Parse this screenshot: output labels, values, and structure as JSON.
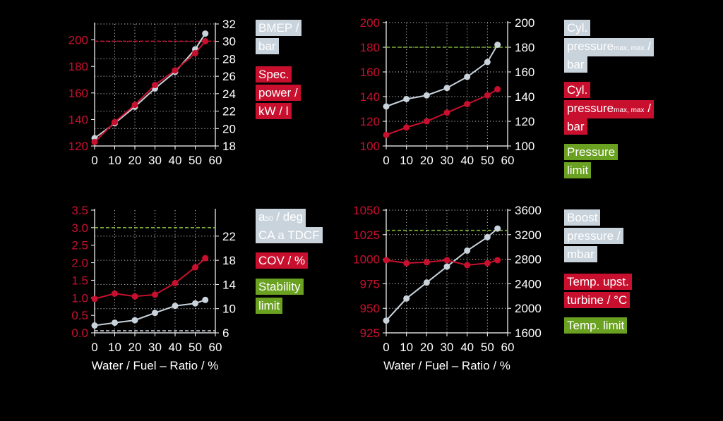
{
  "colors": {
    "gray_series": "#c9d3dc",
    "red_series": "#c8102e",
    "green_limit": "#7fb13a",
    "grid": "#c9c9c9",
    "axis_text": "#ffffff",
    "red_axis_text": "#c8102e",
    "background": "#000000"
  },
  "legends": {
    "c1": {
      "gray": [
        "BMEP /",
        "bar"
      ],
      "red": [
        "Spec.",
        "power /",
        "kW / l"
      ]
    },
    "c2": {
      "gray_top": "Cyl.",
      "gray_mid_main": "pressure",
      "gray_mid_sub": "max, max",
      "gray_mid_tail": " /",
      "gray_bot": "bar",
      "red_top": "Cyl.",
      "red_mid_main": "pressure",
      "red_mid_sub": "max, max",
      "red_mid_tail": " /",
      "red_bot": "bar",
      "green": [
        "Pressure",
        "limit"
      ]
    },
    "c3": {
      "gray_a_main": "a",
      "gray_a_sub": "50",
      "gray_a_tail": " / deg",
      "gray_b": "CA a TDCF",
      "red": "COV / %",
      "green": [
        "Stability",
        "limit"
      ]
    },
    "c4": {
      "gray": [
        "Boost",
        "pressure /",
        "mbar"
      ],
      "red": [
        "Temp. upst.",
        "turbine / °C"
      ],
      "green": "Temp. limit"
    }
  },
  "chart_data": [
    {
      "type": "line",
      "xlabel": "",
      "x_ticks": [
        "0",
        "10",
        "20",
        "30",
        "40",
        "50",
        "60"
      ],
      "xlim": [
        0,
        60
      ],
      "grid": true,
      "left_axis": {
        "lim": [
          120,
          212
        ],
        "ticks": [
          120,
          140,
          160,
          180,
          200
        ]
      },
      "right_axis": {
        "lim": [
          18,
          32
        ],
        "ticks": [
          18,
          20,
          22,
          24,
          26,
          28,
          30,
          32
        ]
      },
      "series": [
        {
          "name": "BMEP / bar",
          "axis": "right",
          "color": "gray",
          "x": [
            0,
            10,
            20,
            30,
            40,
            50,
            55
          ],
          "values": [
            18.9,
            20.6,
            22.5,
            24.6,
            26.5,
            29.1,
            30.9
          ]
        },
        {
          "name": "Spec. power / kW / l",
          "axis": "left",
          "color": "red",
          "x": [
            0,
            10,
            20,
            30,
            40,
            50,
            55
          ],
          "values": [
            123,
            138,
            151,
            166,
            177,
            190,
            199
          ]
        }
      ],
      "hlines": [
        {
          "axis": "left",
          "value": 199,
          "color": "red"
        }
      ]
    },
    {
      "type": "line",
      "xlabel": "",
      "x_ticks": [
        "0",
        "10",
        "20",
        "30",
        "40",
        "50",
        "60"
      ],
      "xlim": [
        0,
        60
      ],
      "grid": true,
      "left_axis": {
        "lim": [
          100,
          200
        ],
        "ticks": [
          100,
          120,
          140,
          160,
          180,
          200
        ]
      },
      "right_axis": {
        "lim": [
          100,
          200
        ],
        "ticks": [
          100,
          120,
          140,
          160,
          180,
          200
        ]
      },
      "series": [
        {
          "name": "Cyl. pressure max, max / bar",
          "axis": "right",
          "color": "gray",
          "x": [
            0,
            10,
            20,
            30,
            40,
            50,
            55
          ],
          "values": [
            132,
            138,
            141,
            147,
            156,
            168,
            182
          ]
        },
        {
          "name": "Cyl. pressure max, max / bar",
          "axis": "left",
          "color": "red",
          "x": [
            0,
            10,
            20,
            30,
            40,
            50,
            55
          ],
          "values": [
            109,
            115,
            120,
            127,
            134,
            141,
            146
          ]
        }
      ],
      "hlines": [
        {
          "axis": "left",
          "value": 180,
          "color": "green"
        }
      ]
    },
    {
      "type": "line",
      "xlabel": "Water / Fuel – Ratio / %",
      "x_ticks": [
        "0",
        "10",
        "20",
        "30",
        "40",
        "50",
        "60"
      ],
      "xlim": [
        0,
        60
      ],
      "grid": true,
      "left_axis": {
        "lim": [
          0,
          3.5
        ],
        "ticks": [
          "0.0",
          "0.5",
          "1.0",
          "1.5",
          "2.0",
          "2.5",
          "3.0",
          "3.5"
        ]
      },
      "right_axis": {
        "lim": [
          6,
          26.3
        ],
        "ticks": [
          6,
          10,
          14,
          18,
          22
        ]
      },
      "series": [
        {
          "name": "a50 / deg CA a TDCF",
          "axis": "left",
          "color": "gray",
          "x": [
            0,
            10,
            20,
            30,
            40,
            50,
            55
          ],
          "values": [
            0.21,
            0.29,
            0.36,
            0.57,
            0.77,
            0.84,
            0.94
          ]
        },
        {
          "name": "COV / %",
          "axis": "left",
          "color": "red",
          "x": [
            0,
            10,
            20,
            30,
            40,
            50,
            55
          ],
          "values": [
            0.97,
            1.12,
            1.04,
            1.09,
            1.42,
            1.87,
            2.13
          ]
        }
      ],
      "hlines": [
        {
          "axis": "left",
          "value": 3.0,
          "color": "green"
        },
        {
          "axis": "left",
          "value": 0.06,
          "color": "gray"
        }
      ]
    },
    {
      "type": "line",
      "xlabel": "Water / Fuel – Ratio / %",
      "x_ticks": [
        "0",
        "10",
        "20",
        "30",
        "40",
        "50",
        "60"
      ],
      "xlim": [
        0,
        60
      ],
      "grid": true,
      "left_axis": {
        "lim": [
          925,
          1050
        ],
        "ticks": [
          925,
          950,
          975,
          1000,
          1025,
          1050
        ]
      },
      "right_axis": {
        "lim": [
          1600,
          3600
        ],
        "ticks": [
          1600,
          2000,
          2400,
          2800,
          3200,
          3600
        ]
      },
      "series": [
        {
          "name": "Boost pressure / mbar",
          "axis": "right",
          "color": "gray",
          "x": [
            0,
            10,
            20,
            30,
            40,
            50,
            55
          ],
          "values": [
            1800,
            2160,
            2420,
            2680,
            2940,
            3160,
            3300
          ]
        },
        {
          "name": "Temp. upst. turbine / °C",
          "axis": "left",
          "color": "red",
          "x": [
            0,
            10,
            20,
            30,
            40,
            50,
            55
          ],
          "values": [
            999,
            996,
            997,
            999,
            994,
            996,
            999
          ]
        }
      ],
      "hlines": [
        {
          "axis": "right",
          "value": 3270,
          "color": "green"
        }
      ]
    }
  ]
}
